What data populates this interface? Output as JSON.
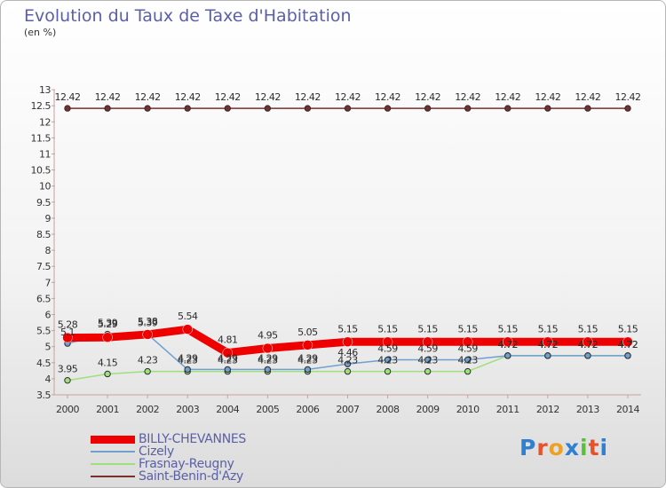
{
  "chart_data": {
    "type": "line",
    "title": "Evolution du Taux de Taxe d'Habitation",
    "ylabel": "(en %)",
    "xlabel": "",
    "categories": [
      "2000",
      "2001",
      "2002",
      "2003",
      "2004",
      "2005",
      "2006",
      "2007",
      "2008",
      "2009",
      "2010",
      "2011",
      "2012",
      "2013",
      "2014"
    ],
    "ylim": [
      3.5,
      13
    ],
    "yticks": [
      "3.5",
      "4",
      "4.5",
      "5",
      "5.5",
      "6",
      "6.5",
      "7",
      "7.5",
      "8",
      "8.5",
      "9",
      "9.5",
      "10",
      "10.5",
      "11",
      "11.5",
      "12",
      "12.5",
      "13"
    ],
    "series": [
      {
        "name": "BILLY-CHEVANNES",
        "color": "#ee0000",
        "values": [
          5.28,
          5.29,
          5.38,
          5.54,
          4.81,
          4.95,
          5.05,
          5.15,
          5.15,
          5.15,
          5.15,
          5.15,
          5.15,
          5.15,
          5.15
        ],
        "labels": [
          "5.28",
          "5.29",
          "5.38",
          "5.54",
          "4.81",
          "4.95",
          "5.05",
          "5.15",
          "5.15",
          "5.15",
          "5.15",
          "5.15",
          "5.15",
          "5.15",
          "5.15"
        ]
      },
      {
        "name": "Cizely",
        "color": "#6fa0cf",
        "values": [
          5.1,
          5.39,
          5.39,
          4.29,
          4.29,
          4.29,
          4.29,
          4.46,
          4.59,
          4.59,
          4.59,
          4.72,
          4.72,
          4.72,
          4.72
        ],
        "labels": [
          "5.1",
          "5.39",
          "5.39",
          "4.29",
          "4.29",
          "4.29",
          "4.29",
          "4.46",
          "4.59",
          "4.59",
          "4.59",
          "4.72",
          "4.72",
          "4.72",
          "4.72"
        ]
      },
      {
        "name": "Frasnay-Reugny",
        "color": "#9ee07b",
        "values": [
          3.95,
          4.15,
          4.23,
          4.23,
          4.23,
          4.23,
          4.23,
          4.23,
          4.23,
          4.23,
          4.23,
          4.72,
          4.72,
          4.72,
          4.72
        ],
        "labels": [
          "3.95",
          "4.15",
          "4.23",
          "4.23",
          "4.23",
          "4.23",
          "4.23",
          "4.23",
          "4.23",
          "4.23",
          "4.23",
          "4.72",
          "4.72",
          "4.72",
          "4.72"
        ]
      },
      {
        "name": "Saint-Benin-d'Azy",
        "color": "#7a2e2e",
        "values": [
          12.42,
          12.42,
          12.42,
          12.42,
          12.42,
          12.42,
          12.42,
          12.42,
          12.42,
          12.42,
          12.42,
          12.42,
          12.42,
          12.42,
          12.42
        ],
        "labels": [
          "12.42",
          "12.42",
          "12.42",
          "12.42",
          "12.42",
          "12.42",
          "12.42",
          "12.42",
          "12.42",
          "12.42",
          "12.42",
          "12.42",
          "12.42",
          "12.42",
          "12.42"
        ]
      }
    ],
    "legend_position": "bottom-left",
    "grid": false
  },
  "legend": {
    "items": [
      {
        "label": "BILLY-CHEVANNES",
        "color": "#ee0000"
      },
      {
        "label": "Cizely",
        "color": "#6fa0cf"
      },
      {
        "label": "Frasnay-Reugny",
        "color": "#9ee07b"
      },
      {
        "label": "Saint-Benin-d'Azy",
        "color": "#7a2e2e"
      }
    ]
  },
  "logo": {
    "text": "Proxiti",
    "letters": [
      "P",
      "r",
      "o",
      "x",
      "i",
      "t",
      "i"
    ],
    "colors": [
      "#2f7fd3",
      "#e8522a",
      "#f0a020",
      "#2f7fd3",
      "#5bbf3a",
      "#e8522a",
      "#2f7fd3"
    ]
  }
}
